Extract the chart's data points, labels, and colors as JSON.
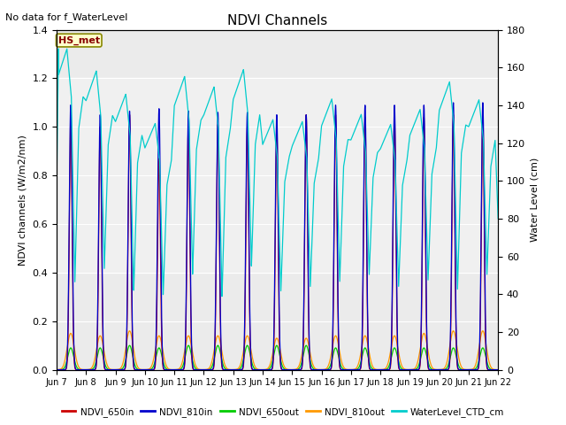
{
  "title": "NDVI Channels",
  "ylabel_left": "NDVI channels (W/m2/nm)",
  "ylabel_right": "Water Level (cm)",
  "annotation_text": "No data for f_WaterLevel",
  "box_label": "HS_met",
  "ylim_left": [
    0.0,
    1.4
  ],
  "ylim_right": [
    0,
    180
  ],
  "yticks_left": [
    0.0,
    0.2,
    0.4,
    0.6,
    0.8,
    1.0,
    1.2,
    1.4
  ],
  "yticks_right": [
    0,
    20,
    40,
    60,
    80,
    100,
    120,
    140,
    160,
    180
  ],
  "plot_bg_color": "#ebebeb",
  "colors": {
    "NDVI_650in": "#cc0000",
    "NDVI_810in": "#0000cc",
    "NDVI_650out": "#00cc00",
    "NDVI_810out": "#ff9900",
    "WaterLevel_CTD_cm": "#00cccc"
  },
  "x_tick_labels": [
    "Jun 7",
    "Jun 8",
    "Jun 9",
    "Jun 10",
    "Jun 11",
    "Jun 12",
    "Jun 13",
    "Jun 14",
    "Jun 15",
    "Jun 16",
    "Jun 17",
    "Jun 18",
    "Jun 19",
    "Jun 20",
    "Jun 21",
    "Jun 22"
  ]
}
